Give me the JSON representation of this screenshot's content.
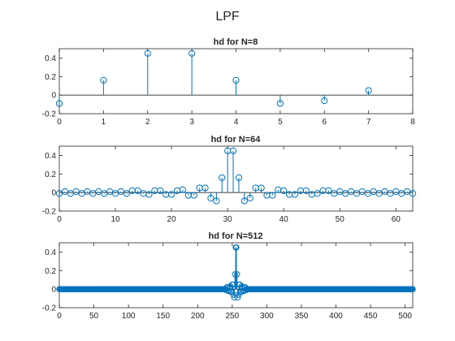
{
  "figure": {
    "title": "LPF"
  },
  "colors": {
    "stem": "#0072BD",
    "axis": "#262626",
    "background": "#ffffff"
  },
  "chart_data": [
    {
      "type": "stem",
      "title": "hd for N=8",
      "xlim": [
        0,
        8
      ],
      "ylim": [
        -0.2,
        0.5
      ],
      "xticks": [
        0,
        1,
        2,
        3,
        4,
        5,
        6,
        7,
        8
      ],
      "yticks": [
        -0.2,
        0,
        0.2,
        0.4
      ],
      "x": [
        0,
        1,
        2,
        3,
        4,
        5,
        6,
        7
      ],
      "y": [
        -0.09,
        0.16,
        0.45,
        0.45,
        0.16,
        -0.09,
        -0.06,
        0.05
      ]
    },
    {
      "type": "stem",
      "title": "hd for N=64",
      "xlim": [
        0,
        63
      ],
      "ylim": [
        -0.2,
        0.5
      ],
      "xticks": [
        0,
        10,
        20,
        30,
        40,
        50,
        60
      ],
      "yticks": [
        -0.2,
        0,
        0.2,
        0.4
      ],
      "x": [
        0,
        1,
        2,
        3,
        4,
        5,
        6,
        7,
        8,
        9,
        10,
        11,
        12,
        13,
        14,
        15,
        16,
        17,
        18,
        19,
        20,
        21,
        22,
        23,
        24,
        25,
        26,
        27,
        28,
        29,
        30,
        31,
        32,
        33,
        34,
        35,
        36,
        37,
        38,
        39,
        40,
        41,
        42,
        43,
        44,
        45,
        46,
        47,
        48,
        49,
        50,
        51,
        52,
        53,
        54,
        55,
        56,
        57,
        58,
        59,
        60,
        61,
        62,
        63
      ],
      "y": [
        -0.01,
        0.01,
        -0.01,
        0.01,
        -0.01,
        0.01,
        -0.01,
        0.01,
        -0.01,
        0.01,
        -0.01,
        0.01,
        -0.01,
        0.02,
        0.02,
        -0.01,
        -0.02,
        0.02,
        0.02,
        -0.02,
        -0.02,
        0.02,
        0.03,
        -0.03,
        -0.03,
        0.05,
        0.05,
        -0.06,
        -0.09,
        0.16,
        0.45,
        0.45,
        0.16,
        -0.09,
        -0.06,
        0.05,
        0.05,
        -0.03,
        -0.03,
        0.03,
        0.02,
        -0.02,
        -0.02,
        0.02,
        0.02,
        -0.02,
        -0.01,
        0.02,
        0.02,
        -0.01,
        0.01,
        -0.01,
        0.01,
        -0.01,
        0.01,
        -0.01,
        0.01,
        -0.01,
        0.01,
        -0.01,
        0.01,
        -0.01,
        0.01,
        -0.01
      ]
    },
    {
      "type": "stem",
      "title": "hd for N=512",
      "xlim": [
        0,
        511
      ],
      "ylim": [
        -0.2,
        0.5
      ],
      "xticks": [
        0,
        50,
        100,
        150,
        200,
        250,
        300,
        350,
        400,
        450,
        500
      ],
      "yticks": [
        -0.2,
        0,
        0.2,
        0.4
      ],
      "n": 512,
      "peak_center": 255.5,
      "peak_values": [
        0.45,
        0.16,
        -0.09,
        -0.06,
        0.05,
        0.05,
        -0.03,
        -0.03,
        0.03,
        0.02,
        -0.02,
        -0.02,
        0.02,
        0.02,
        -0.01
      ]
    }
  ]
}
